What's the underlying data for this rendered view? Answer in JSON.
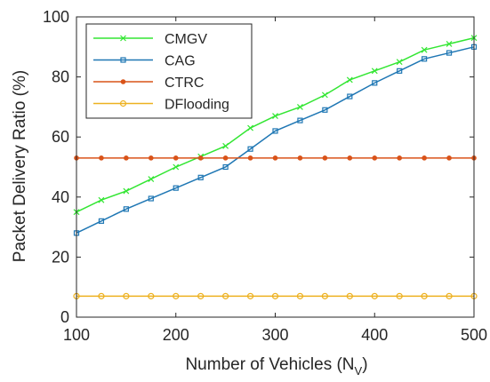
{
  "chart_data": {
    "type": "line",
    "title": "",
    "xlabel": "Number of Vehicles (N",
    "xlabel_sub": "V",
    "xlabel_close": ")",
    "ylabel": "Packet Delivery Ratio (%)",
    "xlim": [
      100,
      500
    ],
    "ylim": [
      0,
      100
    ],
    "xticks": [
      100,
      200,
      300,
      400,
      500
    ],
    "yticks": [
      0,
      20,
      40,
      60,
      80,
      100
    ],
    "grid": false,
    "legend_position": "top-left",
    "x": [
      100,
      125,
      150,
      175,
      200,
      225,
      250,
      275,
      300,
      325,
      350,
      375,
      400,
      425,
      450,
      475,
      500
    ],
    "series": [
      {
        "name": "CMGV",
        "color": "#33e633",
        "marker": "x",
        "values": [
          35,
          39,
          42,
          46,
          50,
          53.5,
          57,
          63,
          67,
          70,
          74,
          79,
          82,
          85,
          89,
          91,
          93
        ]
      },
      {
        "name": "CAG",
        "color": "#1f77b4",
        "marker": "square",
        "values": [
          28,
          32,
          36,
          39.5,
          43,
          46.5,
          50,
          56,
          62,
          65.5,
          69,
          73.5,
          78,
          82,
          86,
          88,
          90
        ]
      },
      {
        "name": "CTRC",
        "color": "#d95319",
        "marker": "dot",
        "values": [
          53,
          53,
          53,
          53,
          53,
          53,
          53,
          53,
          53,
          53,
          53,
          53,
          53,
          53,
          53,
          53,
          53
        ]
      },
      {
        "name": "DFlooding",
        "color": "#edb120",
        "marker": "circle",
        "values": [
          7,
          7,
          7,
          7,
          7,
          7,
          7,
          7,
          7,
          7,
          7,
          7,
          7,
          7,
          7,
          7,
          7
        ]
      }
    ]
  }
}
